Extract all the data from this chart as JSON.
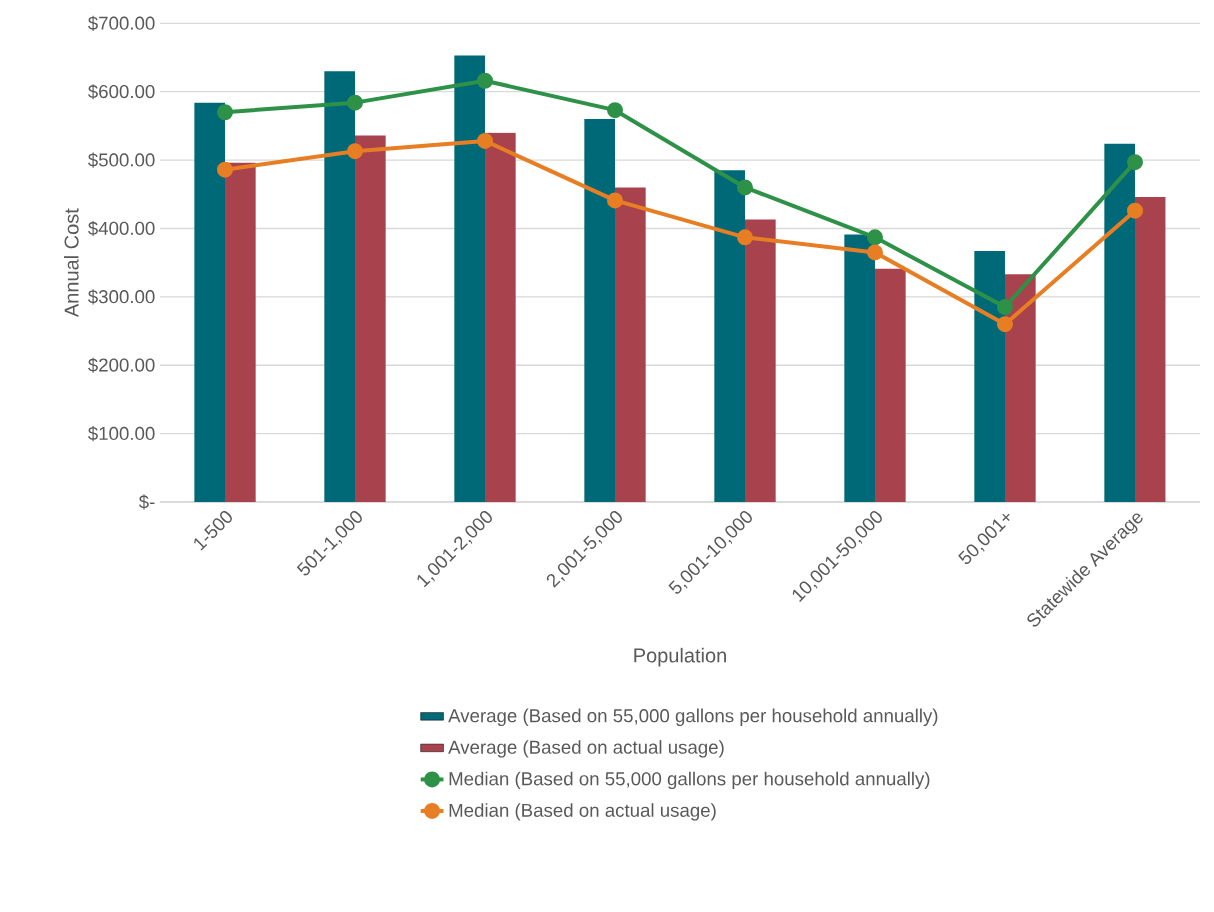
{
  "chart_data": {
    "type": "bar",
    "xlabel": "Population",
    "ylabel": "Annual Cost",
    "categories": [
      "1-500",
      "501-1,000",
      "1,001-2,000",
      "2,001-5,000",
      "5,001-10,000",
      "10,001-50,000",
      "50,001+",
      "Statewide Average"
    ],
    "series": [
      {
        "name": "Average (Based on 55,000 gallons per household annually)",
        "color": "#006978",
        "values": [
          584,
          630,
          653,
          560,
          485,
          391,
          367,
          524
        ]
      },
      {
        "name": "Average (Based on actual usage)",
        "color": "#a8424d",
        "values": [
          496,
          536,
          540,
          460,
          413,
          341,
          333,
          446
        ]
      },
      {
        "name": "Median (Based on 55,000 gallons per household annually)",
        "type": "line",
        "color": "#2e9148",
        "values": [
          570,
          584,
          616,
          573,
          460,
          387,
          285,
          497
        ]
      },
      {
        "name": "Median (Based on actual usage)",
        "type": "line",
        "color": "#e87e24",
        "values": [
          486,
          513,
          528,
          441,
          387,
          365,
          260,
          426
        ]
      }
    ],
    "ylim": [
      0,
      700
    ],
    "yticks": [
      {
        "value": 0,
        "label": "$-"
      },
      {
        "value": 100,
        "label": "$100.00"
      },
      {
        "value": 200,
        "label": "$200.00"
      },
      {
        "value": 300,
        "label": "$300.00"
      },
      {
        "value": 400,
        "label": "$400.00"
      },
      {
        "value": 500,
        "label": "$500.00"
      },
      {
        "value": 600,
        "label": "$600.00"
      },
      {
        "value": 700,
        "label": "$700.00"
      }
    ],
    "grid": "y",
    "legend": "bottom",
    "marker": "circle"
  }
}
